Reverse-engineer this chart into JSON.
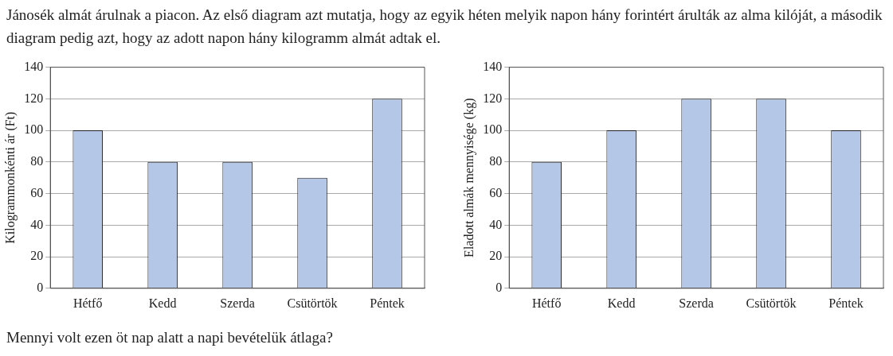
{
  "chart_data": [
    {
      "type": "bar",
      "annotations": [
        "Jánosék almát árulnak a piacon. Az első diagram azt mutatja, hogy az egyik héten melyik napon hány forintért árulták az alma kilóját, a második diagram pedig azt, hogy az adott napon hány kilogramm almát adtak el."
      ],
      "ylabel": "Kilogrammonkénti ár (Ft)",
      "categories": [
        "Hétfő",
        "Kedd",
        "Szerda",
        "Csütörtök",
        "Péntek"
      ],
      "values": [
        100,
        80,
        80,
        70,
        120
      ],
      "color": "#b4c7e7",
      "ylim": [
        0,
        140
      ],
      "yticks": [
        0,
        20,
        40,
        60,
        80,
        100,
        120,
        140
      ],
      "grid": "y"
    },
    {
      "type": "bar",
      "annotations": [
        "Mennyi volt ezen öt nap alatt a napi bevételük átlaga?"
      ],
      "ylabel": "Eladott almák mennyisége (kg)",
      "categories": [
        "Hétfő",
        "Kedd",
        "Szerda",
        "Csütörtök",
        "Péntek"
      ],
      "values": [
        80,
        100,
        120,
        120,
        100
      ],
      "color": "#b4c7e7",
      "ylim": [
        0,
        140
      ],
      "yticks": [
        0,
        20,
        40,
        60,
        80,
        100,
        120,
        140
      ],
      "grid": "y"
    }
  ]
}
